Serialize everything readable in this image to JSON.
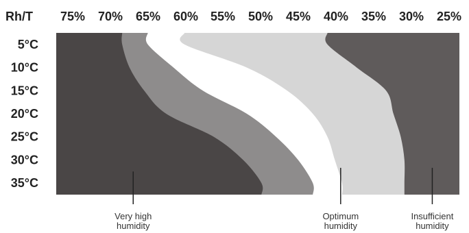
{
  "chart_data": {
    "type": "heatmap",
    "corner_label": "Rh/T",
    "columns": [
      "75%",
      "70%",
      "65%",
      "60%",
      "55%",
      "50%",
      "45%",
      "40%",
      "35%",
      "30%",
      "25%"
    ],
    "rows": [
      "5°C",
      "10°C",
      "15°C",
      "20°C",
      "25°C",
      "30°C",
      "35°C"
    ],
    "zones": [
      {
        "name": "very_high_humidity",
        "color": "#4a4646",
        "boundary": [
          {
            "t": 5,
            "rh": 68.5
          },
          {
            "t": 10,
            "rh": 67.5
          },
          {
            "t": 15,
            "rh": 65.5
          },
          {
            "t": 20,
            "rh": 62.5
          },
          {
            "t": 25,
            "rh": 56
          },
          {
            "t": 30,
            "rh": 52
          },
          {
            "t": 35,
            "rh": 49.5
          }
        ]
      },
      {
        "name": "high_humidity",
        "color": "#8e8c8c",
        "boundary": [
          {
            "t": 5,
            "rh": 65
          },
          {
            "t": 10,
            "rh": 61.5
          },
          {
            "t": 15,
            "rh": 57.5
          },
          {
            "t": 20,
            "rh": 51.5
          },
          {
            "t": 25,
            "rh": 47.5
          },
          {
            "t": 30,
            "rh": 44.5
          },
          {
            "t": 35,
            "rh": 42.5
          }
        ]
      },
      {
        "name": "optimum_humidity",
        "color": "#ffffff",
        "boundary": [
          {
            "t": 5,
            "rh": 60
          },
          {
            "t": 10,
            "rh": 51.5
          },
          {
            "t": 15,
            "rh": 46
          },
          {
            "t": 20,
            "rh": 42.5
          },
          {
            "t": 25,
            "rh": 40.5
          },
          {
            "t": 30,
            "rh": 39.5
          },
          {
            "t": 35,
            "rh": 38.5
          }
        ]
      },
      {
        "name": "low_humidity",
        "color": "#d6d6d6",
        "boundary": [
          {
            "t": 5,
            "rh": 40.5
          },
          {
            "t": 10,
            "rh": 36.5
          },
          {
            "t": 15,
            "rh": 32.5
          },
          {
            "t": 20,
            "rh": 31.5
          },
          {
            "t": 25,
            "rh": 30.5
          },
          {
            "t": 30,
            "rh": 30
          },
          {
            "t": 35,
            "rh": 30
          }
        ]
      },
      {
        "name": "insufficient_humidity",
        "color": "#5f5b5b",
        "boundary": []
      }
    ],
    "callouts": [
      {
        "lines": [
          "Very high",
          "humidity"
        ],
        "rh": 67,
        "t_from": 32.5
      },
      {
        "lines": [
          "Optimum",
          "humidity"
        ],
        "rh": 38.7,
        "t_from": 31.7
      },
      {
        "lines": [
          "Insufficient",
          "humidity"
        ],
        "rh": 26.2,
        "t_from": 31.7
      }
    ]
  }
}
